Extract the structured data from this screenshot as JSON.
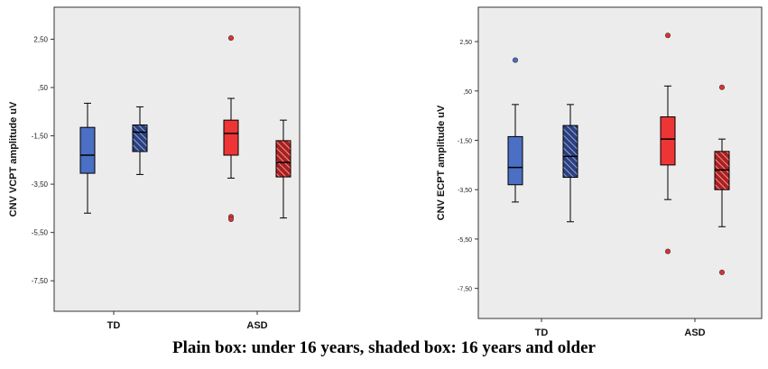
{
  "caption": "Plain box: under 16 years, shaded box: 16 years and older",
  "colors": {
    "background": "#ececec",
    "frame": "#333333",
    "td_fill": "#4a6fc4",
    "asd_fill": "#ee3535",
    "td_outlier": "#4a6fc4",
    "asd_outlier": "#e03030"
  },
  "chart_data": [
    {
      "type": "box",
      "ylabel": "CNV VCPT amplitude uV",
      "categories": [
        "TD",
        "ASD"
      ],
      "yticks": [
        2.5,
        0.5,
        -1.5,
        -3.5,
        -5.5,
        -7.5
      ],
      "ytick_labels": [
        "2,50",
        ",50",
        "-1,50",
        "-3,50",
        "-5,50",
        "-7,50"
      ],
      "ylim": [
        -8.5,
        3.6
      ],
      "boxes": [
        {
          "group": "TD",
          "age": "under 16 years",
          "shaded": false,
          "color": "td",
          "whisker_low": -4.7,
          "q1": -3.05,
          "median": -2.3,
          "q3": -1.15,
          "whisker_high": -0.15,
          "outliers": []
        },
        {
          "group": "TD",
          "age": "16 years and older",
          "shaded": true,
          "color": "td",
          "whisker_low": -3.1,
          "q1": -2.15,
          "median": -1.35,
          "q3": -1.05,
          "whisker_high": -0.3,
          "outliers": []
        },
        {
          "group": "ASD",
          "age": "under 16 years",
          "shaded": false,
          "color": "asd",
          "whisker_low": -3.25,
          "q1": -2.3,
          "median": -1.4,
          "q3": -0.85,
          "whisker_high": 0.05,
          "outliers": [
            2.55,
            -4.85,
            -4.95
          ]
        },
        {
          "group": "ASD",
          "age": "16 years and older",
          "shaded": true,
          "color": "asd",
          "whisker_low": -4.9,
          "q1": -3.2,
          "median": -2.6,
          "q3": -1.7,
          "whisker_high": -0.85,
          "outliers": []
        }
      ]
    },
    {
      "type": "box",
      "ylabel": "CNV ECPT amplitude uV",
      "categories": [
        "TD",
        "ASD"
      ],
      "yticks": [
        2.5,
        0.5,
        -1.5,
        -3.5,
        -5.5,
        -7.5
      ],
      "ytick_labels": [
        "2,50",
        ",50",
        "-1,50",
        "-3,50",
        "-5,50",
        "-7,50"
      ],
      "ylim": [
        -8.5,
        3.6
      ],
      "boxes": [
        {
          "group": "TD",
          "age": "under 16 years",
          "shaded": false,
          "color": "td",
          "whisker_low": -4.0,
          "q1": -3.3,
          "median": -2.6,
          "q3": -1.35,
          "whisker_high": -0.05,
          "outliers": [
            1.75
          ]
        },
        {
          "group": "TD",
          "age": "16 years and older",
          "shaded": true,
          "color": "td",
          "whisker_low": -4.8,
          "q1": -3.0,
          "median": -2.15,
          "q3": -0.9,
          "whisker_high": -0.05,
          "outliers": []
        },
        {
          "group": "ASD",
          "age": "under 16 years",
          "shaded": false,
          "color": "asd",
          "whisker_low": -3.9,
          "q1": -2.5,
          "median": -1.45,
          "q3": -0.55,
          "whisker_high": 0.7,
          "outliers": [
            2.75,
            -6.0
          ]
        },
        {
          "group": "ASD",
          "age": "16 years and older",
          "shaded": true,
          "color": "asd",
          "whisker_low": -5.0,
          "q1": -3.5,
          "median": -2.7,
          "q3": -1.95,
          "whisker_high": -1.45,
          "outliers": [
            0.65,
            -6.85
          ]
        }
      ]
    }
  ]
}
